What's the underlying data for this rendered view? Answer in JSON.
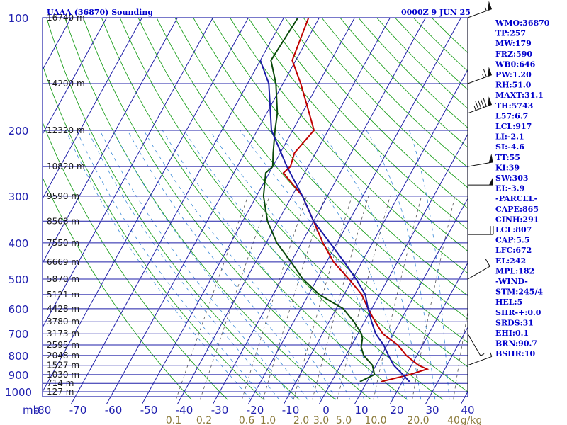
{
  "header": {
    "title": "UAAA (36870) Sounding",
    "time": "0000Z  9 JUN 25"
  },
  "indices": [
    "WMO:36870",
    "TP:257",
    "MW:179",
    "FRZ:590",
    "WB0:646",
    "PW:1.20",
    "RH:51.0",
    "MAXT:31.1",
    "TH:5743",
    "L57:6.7",
    "LCL:917",
    "LI:-2.1",
    "SI:-4.6",
    "TT:55",
    "KI:39",
    "SW:303",
    "EI:-3.9",
    "-PARCEL-",
    "CAPE:865",
    "CINH:291",
    "LCL:807",
    "CAP:5.5",
    "LFC:672",
    "EL:242",
    "MPL:182",
    "-WIND-",
    "STM:245/4",
    "HEL:5",
    "SHR-+:0.0",
    "SRDS:31",
    "EHI:0.1",
    "BRN:90.7",
    "BSHR:10"
  ],
  "chart_data": {
    "type": "line",
    "title": "UAAA (36870) Sounding",
    "xlabel": "",
    "ylabel": "mb",
    "x_tick_labels": [
      "-80",
      "-70",
      "-60",
      "-50",
      "-40",
      "-30",
      "-20",
      "-10",
      "0",
      "10",
      "20",
      "30",
      "40"
    ],
    "pressure_levels": [
      100,
      200,
      300,
      400,
      500,
      600,
      700,
      800,
      900,
      1000
    ],
    "pressure_tick_labels": [
      "100",
      "200",
      "300",
      "400",
      "500",
      "600",
      "700",
      "800",
      "900",
      "1000"
    ],
    "height_labels": [
      {
        "p": 100,
        "label": "16740 m"
      },
      {
        "p": 150,
        "label": "14200 m"
      },
      {
        "p": 200,
        "label": "12320 m"
      },
      {
        "p": 250,
        "label": "10820 m"
      },
      {
        "p": 300,
        "label": "9590 m"
      },
      {
        "p": 350,
        "label": "8508 m"
      },
      {
        "p": 400,
        "label": "7550 m"
      },
      {
        "p": 450,
        "label": "6669 m"
      },
      {
        "p": 500,
        "label": "5870 m"
      },
      {
        "p": 550,
        "label": "5121 m"
      },
      {
        "p": 600,
        "label": "4428 m"
      },
      {
        "p": 650,
        "label": "3780 m"
      },
      {
        "p": 700,
        "label": "3173 m"
      },
      {
        "p": 750,
        "label": "2595 m"
      },
      {
        "p": 800,
        "label": "2048 m"
      },
      {
        "p": 850,
        "label": "1527 m"
      },
      {
        "p": 900,
        "label": "1030 m"
      },
      {
        "p": 950,
        "label": "714 m"
      },
      {
        "p": 1000,
        "label": "127 m"
      }
    ],
    "mixing_ratio_labels": [
      "0.1",
      "0.2",
      "0.6",
      "1.0",
      "2.0",
      "3.0",
      "5.0",
      "10.0",
      "20.0",
      "40",
      "g/kg"
    ],
    "xlim": [
      -80,
      40
    ],
    "ylim": [
      1000,
      100
    ],
    "log_pressure": true,
    "grid": true,
    "series": [
      {
        "color": "#c00000",
        "values": [
          [
            100,
            -63
          ],
          [
            130,
            -61
          ],
          [
            150,
            -55
          ],
          [
            180,
            -48
          ],
          [
            200,
            -44
          ],
          [
            230,
            -46
          ],
          [
            250,
            -45
          ],
          [
            260,
            -46
          ],
          [
            300,
            -37
          ],
          [
            350,
            -30
          ],
          [
            400,
            -24
          ],
          [
            450,
            -18
          ],
          [
            500,
            -11
          ],
          [
            550,
            -5
          ],
          [
            600,
            -1
          ],
          [
            650,
            3
          ],
          [
            700,
            7
          ],
          [
            750,
            13
          ],
          [
            800,
            17
          ],
          [
            850,
            22
          ],
          [
            870,
            25
          ],
          [
            900,
            21
          ],
          [
            940,
            14
          ]
        ]
      },
      {
        "color": "#0a4a0a",
        "values": [
          [
            100,
            -66
          ],
          [
            130,
            -67
          ],
          [
            150,
            -62
          ],
          [
            180,
            -57
          ],
          [
            200,
            -55
          ],
          [
            230,
            -52
          ],
          [
            250,
            -50
          ],
          [
            260,
            -51
          ],
          [
            300,
            -48
          ],
          [
            350,
            -43
          ],
          [
            400,
            -37
          ],
          [
            450,
            -30
          ],
          [
            500,
            -24
          ],
          [
            550,
            -17
          ],
          [
            600,
            -8
          ],
          [
            650,
            -3
          ],
          [
            700,
            1
          ],
          [
            720,
            2
          ],
          [
            760,
            3
          ],
          [
            800,
            5
          ],
          [
            850,
            9
          ],
          [
            900,
            11
          ],
          [
            940,
            8
          ]
        ]
      },
      {
        "color": "#1a1aa6",
        "values": [
          [
            130,
            -70
          ],
          [
            150,
            -64
          ],
          [
            200,
            -56
          ],
          [
            250,
            -46
          ],
          [
            300,
            -37
          ],
          [
            350,
            -30
          ],
          [
            400,
            -22
          ],
          [
            450,
            -15
          ],
          [
            500,
            -9
          ],
          [
            550,
            -4
          ],
          [
            600,
            -1
          ],
          [
            650,
            2
          ],
          [
            700,
            5
          ],
          [
            750,
            9
          ],
          [
            800,
            12
          ],
          [
            850,
            15
          ],
          [
            900,
            19
          ],
          [
            940,
            22
          ]
        ]
      }
    ],
    "wind_barbs": [
      {
        "p": 100,
        "dir": 250,
        "spd": 55
      },
      {
        "p": 150,
        "dir": 250,
        "spd": 65
      },
      {
        "p": 180,
        "dir": 250,
        "spd": 95
      },
      {
        "p": 250,
        "dir": 260,
        "spd": 50
      },
      {
        "p": 280,
        "dir": 270,
        "spd": 50
      },
      {
        "p": 380,
        "dir": 270,
        "spd": 20
      },
      {
        "p": 500,
        "dir": 240,
        "spd": 10
      },
      {
        "p": 700,
        "dir": 330,
        "spd": 5
      },
      {
        "p": 850,
        "dir": 250,
        "spd": 5
      }
    ]
  }
}
